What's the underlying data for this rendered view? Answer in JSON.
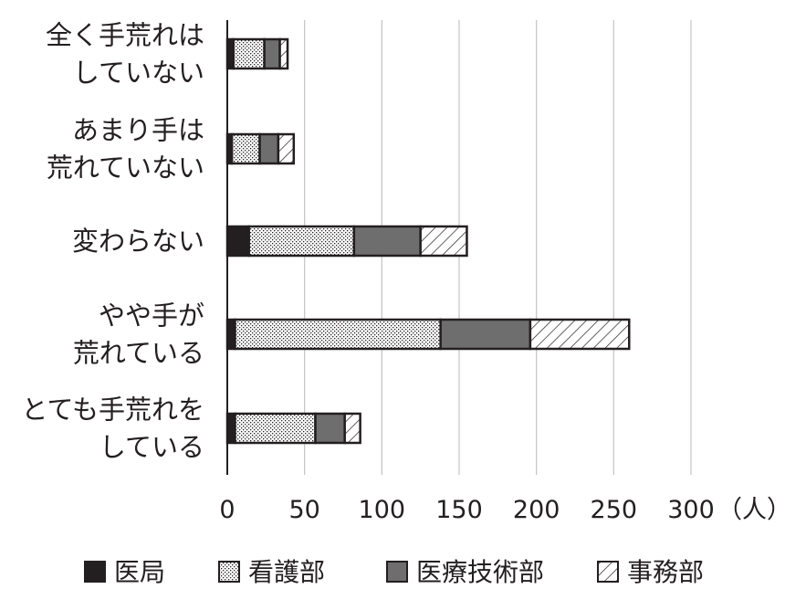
{
  "chart_data": {
    "type": "bar",
    "orientation": "horizontal",
    "stacked": true,
    "categories": [
      [
        "全く手荒れは",
        "していない"
      ],
      [
        "あまり手は",
        "荒れていない"
      ],
      [
        "変わらない"
      ],
      [
        "やや手が",
        "荒れている"
      ],
      [
        "とても手荒れを",
        "している"
      ]
    ],
    "series": [
      {
        "name": "医局",
        "values": [
          4,
          3,
          14,
          5,
          5
        ],
        "color": "#231f20",
        "pattern": "solid"
      },
      {
        "name": "看護部",
        "values": [
          20,
          18,
          68,
          133,
          52
        ],
        "color": "#ffffff",
        "pattern": "dots"
      },
      {
        "name": "医療技術部",
        "values": [
          10,
          12,
          43,
          58,
          19
        ],
        "color": "#6e6e6e",
        "pattern": "gray"
      },
      {
        "name": "事務部",
        "values": [
          5,
          10,
          30,
          64,
          10
        ],
        "color": "#ffffff",
        "pattern": "hatch"
      }
    ],
    "xlim": [
      0,
      300
    ],
    "xticks": [
      "0",
      "50",
      "100",
      "150",
      "200",
      "250",
      "300"
    ],
    "x_unit": "（人）",
    "grid": true,
    "legend_position": "bottom"
  }
}
